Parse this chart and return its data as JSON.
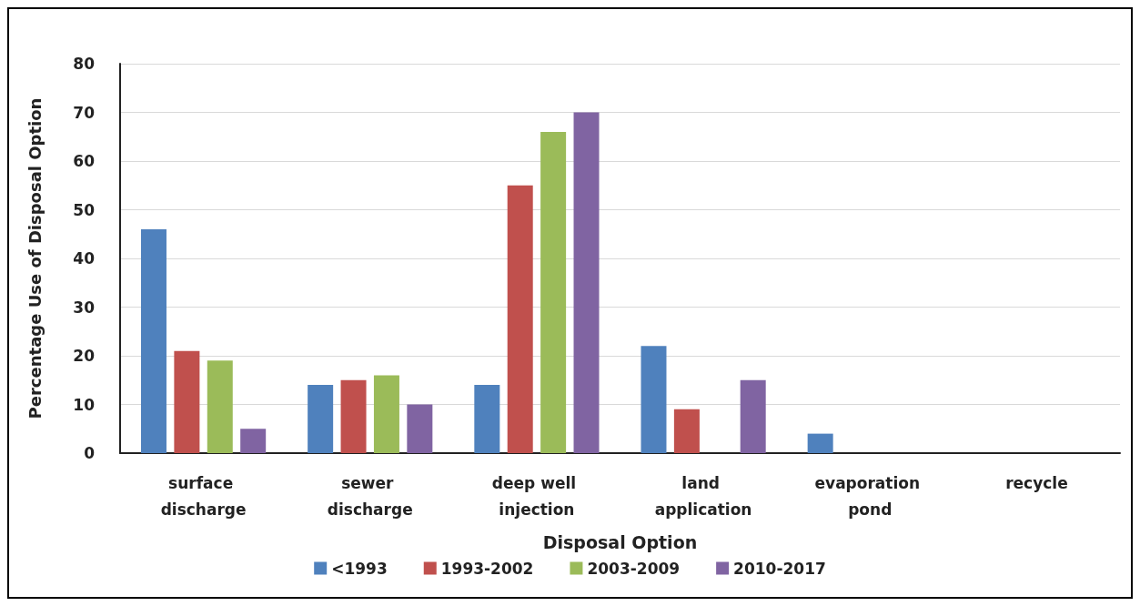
{
  "chart_data": {
    "type": "bar",
    "xlabel": "Disposal Option",
    "ylabel": "Percentage Use of Disposal Option",
    "categories": [
      "surface discharge",
      "sewer discharge",
      "deep well injection",
      "land application",
      "evaporation pond",
      "recycle"
    ],
    "series": [
      {
        "name": "<1993",
        "color": "#4f81bd",
        "values": [
          46,
          14,
          14,
          22,
          4,
          0
        ]
      },
      {
        "name": "1993-2002",
        "color": "#c0504d",
        "values": [
          21,
          15,
          55,
          9,
          0,
          0
        ]
      },
      {
        "name": "2003-2009",
        "color": "#9bbb59",
        "values": [
          19,
          16,
          66,
          0,
          0,
          0
        ]
      },
      {
        "name": "2010-2017",
        "color": "#8064a2",
        "values": [
          5,
          10,
          70,
          15,
          0,
          0
        ]
      }
    ],
    "ylim": [
      0,
      80
    ],
    "yticks": [
      0,
      10,
      20,
      30,
      40,
      50,
      60,
      70,
      80
    ],
    "grid": "y",
    "legend": "bottom"
  }
}
